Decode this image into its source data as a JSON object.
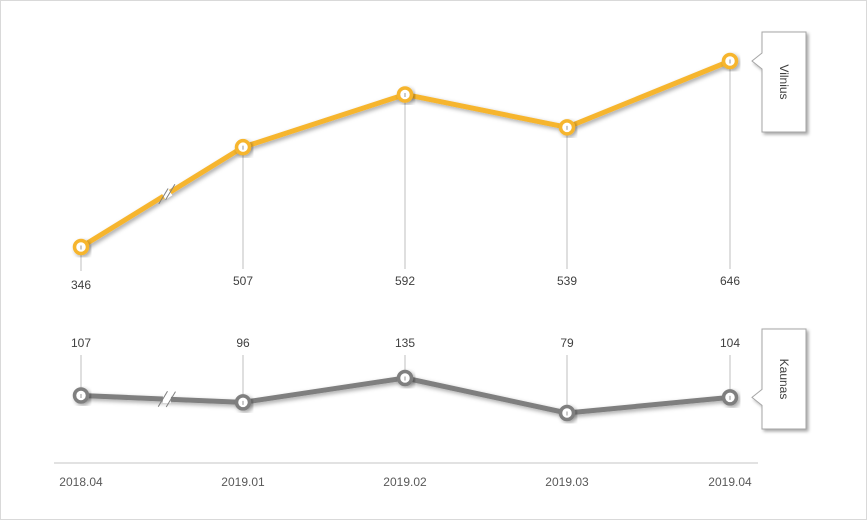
{
  "chart_data": {
    "type": "line",
    "categories": [
      "2018.04",
      "2019.01",
      "2019.02",
      "2019.03",
      "2019.04"
    ],
    "axis_break": "between 2018.04 and 2019.01",
    "series": [
      {
        "name": "Vilnius",
        "values": [
          346,
          507,
          592,
          539,
          646
        ],
        "color": "#f6b52d"
      },
      {
        "name": "Kaunas",
        "values": [
          107,
          96,
          135,
          79,
          104
        ],
        "color": "#7f7f7f"
      }
    ],
    "grid": false,
    "legend": "right, rotated tag at end of each line"
  }
}
